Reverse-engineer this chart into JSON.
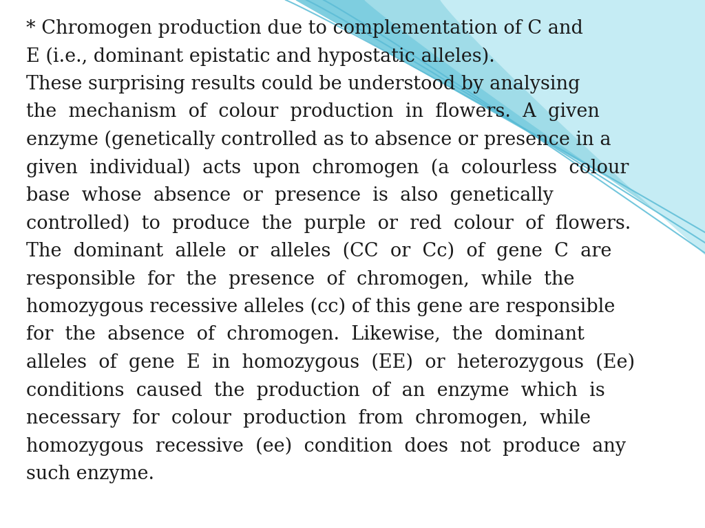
{
  "background_color": "#ffffff",
  "text_color": "#1a1a1a",
  "font_family": "serif",
  "font_size": 19.5,
  "wave_color_outer": "#7ecee0",
  "wave_color_mid": "#a0dce8",
  "wave_color_light": "#c5ecf4",
  "wave_line_color": "#5bbcd6",
  "text_lines": [
    "* Chromogen production due to complementation of C and",
    "E (i.e., dominant epistatic and hypostatic alleles).",
    "These surprising results could be understood by analysing",
    "the  mechanism  of  colour  production  in  flowers.  A  given",
    "enzyme (genetically controlled as to absence or presence in a",
    "given  individual)  acts  upon  chromogen  (a  colourless  colour",
    "base  whose  absence  or  presence  is  also  genetically",
    "controlled)  to  produce  the  purple  or  red  colour  of  flowers.",
    "The  dominant  allele  or  alleles  (CC  or  Cc)  of  gene  C  are",
    "responsible  for  the  presence  of  chromogen,  while  the",
    "homozygous recessive alleles (cc) of this gene are responsible",
    "for  the  absence  of  chromogen.  Likewise,  the  dominant",
    "alleles  of  gene  E  in  homozygous  (EE)  or  heterozygous  (Ee)",
    "conditions  caused  the  production  of  an  enzyme  which  is",
    "necessary  for  colour  production  from  chromogen,  while",
    "homozygous  recessive  (ee)  condition  does  not  produce  any",
    "such enzyme."
  ]
}
